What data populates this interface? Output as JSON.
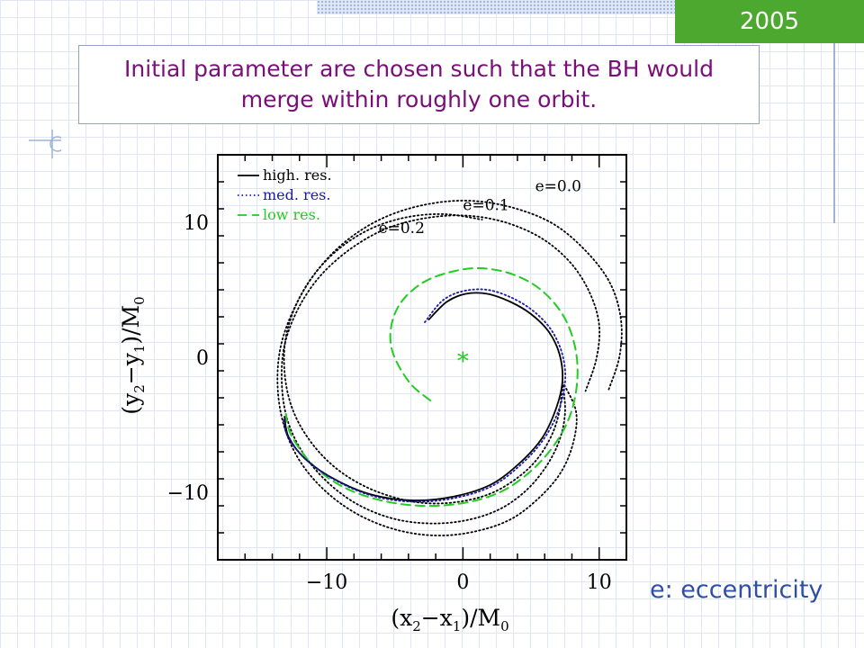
{
  "slide": {
    "year": "2005",
    "title": "Initial parameter are chosen such that the BH would merge within roughly one orbit.",
    "caption": "e: eccentricity"
  },
  "colors": {
    "title_text": "#7a0e7a",
    "badge": "#4ca82e",
    "caption": "#2e4fa8",
    "high_res": "#000000",
    "med_res": "#1a1aa8",
    "low_res": "#22cc22"
  },
  "chart_data": {
    "type": "line",
    "x_label_main": "(x",
    "x_label_sub1": "2",
    "x_label_mid": "−x",
    "x_label_sub2": "1",
    "x_label_end": ")/M",
    "x_label_sub3": "0",
    "y_label_main": "(y",
    "y_label_sub1": "2",
    "y_label_mid": "−y",
    "y_label_sub2": "1",
    "y_label_end": ")/M",
    "y_label_sub3": "0",
    "xlim": [
      -18,
      12
    ],
    "ylim": [
      -15,
      15
    ],
    "x_ticks": [
      -10,
      0,
      10
    ],
    "x_tick_labels": [
      "−10",
      "0",
      "10"
    ],
    "y_ticks": [
      -10,
      0,
      10
    ],
    "y_tick_labels": [
      "−10",
      "0",
      "10"
    ],
    "legend_position": "top-left",
    "legend": [
      {
        "label": "high. res.",
        "style": "solid",
        "color": "#000000"
      },
      {
        "label": "med. res.",
        "style": "dotted",
        "color": "#1a1aa8"
      },
      {
        "label": "low res.",
        "style": "dashed",
        "color": "#22cc22"
      }
    ],
    "annotations": [
      {
        "text": "e=0.0",
        "x": 5.3,
        "y": 12.3
      },
      {
        "text": "e=0.1",
        "x": 0.0,
        "y": 10.9
      },
      {
        "text": "e=0.2",
        "x": -6.2,
        "y": 9.2
      }
    ],
    "center_marker": {
      "symbol": "*",
      "x": 0,
      "y": 0,
      "color": "#22cc22"
    },
    "series": [
      {
        "name": "high. res.",
        "style": "solid",
        "color": "#000000",
        "points": [
          [
            -2.5,
            2.8
          ],
          [
            -1.2,
            4.1
          ],
          [
            0.2,
            4.7
          ],
          [
            1.8,
            4.7
          ],
          [
            3.5,
            4.1
          ],
          [
            5.0,
            3.2
          ],
          [
            6.3,
            1.9
          ],
          [
            7.1,
            0.2
          ],
          [
            7.3,
            -1.8
          ],
          [
            6.8,
            -3.9
          ],
          [
            5.8,
            -6.0
          ],
          [
            4.2,
            -7.8
          ],
          [
            2.1,
            -9.4
          ],
          [
            -0.6,
            -10.3
          ],
          [
            -3.6,
            -10.6
          ],
          [
            -6.6,
            -10.2
          ],
          [
            -9.3,
            -9.1
          ],
          [
            -11.5,
            -7.6
          ],
          [
            -12.8,
            -5.9
          ],
          [
            -13.1,
            -4.4
          ]
        ]
      },
      {
        "name": "med. res.",
        "style": "dotted",
        "color": "#1a1aa8",
        "points": [
          [
            -2.8,
            2.6
          ],
          [
            -1.5,
            4.2
          ],
          [
            0.0,
            4.9
          ],
          [
            1.8,
            5.0
          ],
          [
            3.6,
            4.4
          ],
          [
            5.2,
            3.4
          ],
          [
            6.5,
            2.0
          ],
          [
            7.3,
            0.2
          ],
          [
            7.5,
            -1.8
          ],
          [
            7.0,
            -4.0
          ],
          [
            5.9,
            -6.1
          ],
          [
            4.3,
            -7.9
          ],
          [
            2.2,
            -9.5
          ],
          [
            -0.5,
            -10.4
          ],
          [
            -3.5,
            -10.7
          ],
          [
            -6.5,
            -10.3
          ],
          [
            -9.2,
            -9.2
          ],
          [
            -11.4,
            -7.7
          ],
          [
            -12.8,
            -6.0
          ],
          [
            -13.2,
            -4.5
          ]
        ]
      },
      {
        "name": "low res.",
        "style": "dashed",
        "color": "#22cc22",
        "points": [
          [
            -2.4,
            -3.2
          ],
          [
            -3.9,
            -1.9
          ],
          [
            -5.1,
            0.2
          ],
          [
            -5.3,
            2.1
          ],
          [
            -4.6,
            4.0
          ],
          [
            -3.0,
            5.5
          ],
          [
            -1.0,
            6.3
          ],
          [
            1.2,
            6.6
          ],
          [
            3.5,
            6.2
          ],
          [
            5.6,
            5.1
          ],
          [
            7.3,
            3.2
          ],
          [
            8.2,
            0.9
          ],
          [
            8.4,
            -1.6
          ],
          [
            7.9,
            -4.2
          ],
          [
            6.7,
            -6.5
          ],
          [
            4.9,
            -8.5
          ],
          [
            2.7,
            -10.0
          ],
          [
            0.0,
            -10.8
          ],
          [
            -3.0,
            -11.0
          ],
          [
            -6.0,
            -10.6
          ],
          [
            -8.8,
            -9.6
          ],
          [
            -11.0,
            -8.0
          ],
          [
            -12.6,
            -5.8
          ],
          [
            -13.0,
            -4.2
          ]
        ]
      },
      {
        "name": "e=0.0",
        "style": "dotted",
        "color": "#000000",
        "points": [
          [
            7.3,
            -1.8
          ],
          [
            8.3,
            -4.0
          ],
          [
            8.1,
            -6.3
          ],
          [
            7.2,
            -8.5
          ],
          [
            5.6,
            -10.4
          ],
          [
            3.5,
            -12.0
          ],
          [
            0.9,
            -12.9
          ],
          [
            -1.9,
            -13.2
          ],
          [
            -4.8,
            -12.8
          ],
          [
            -7.6,
            -11.7
          ],
          [
            -10.0,
            -10.0
          ],
          [
            -11.9,
            -7.8
          ],
          [
            -13.1,
            -5.2
          ],
          [
            -13.6,
            -2.3
          ],
          [
            -13.4,
            0.7
          ],
          [
            -12.4,
            3.6
          ],
          [
            -10.8,
            6.3
          ],
          [
            -8.6,
            8.6
          ],
          [
            -5.9,
            10.3
          ],
          [
            -2.8,
            11.3
          ],
          [
            0.4,
            11.6
          ],
          [
            3.6,
            11.1
          ],
          [
            6.6,
            9.9
          ],
          [
            9.0,
            7.9
          ],
          [
            10.8,
            5.5
          ],
          [
            11.6,
            2.8
          ],
          [
            11.5,
            0.1
          ],
          [
            10.7,
            -2.4
          ]
        ]
      },
      {
        "name": "e=0.1",
        "style": "dotted",
        "color": "#000000",
        "points": [
          [
            7.3,
            -1.8
          ],
          [
            7.5,
            -4.0
          ],
          [
            7.1,
            -6.1
          ],
          [
            6.1,
            -8.1
          ],
          [
            4.6,
            -9.9
          ],
          [
            2.6,
            -11.3
          ],
          [
            0.1,
            -12.1
          ],
          [
            -2.6,
            -12.3
          ],
          [
            -5.3,
            -11.9
          ],
          [
            -7.9,
            -10.8
          ],
          [
            -10.1,
            -9.1
          ],
          [
            -11.8,
            -7.0
          ],
          [
            -12.9,
            -4.6
          ],
          [
            -13.3,
            -1.9
          ],
          [
            -13.1,
            0.9
          ],
          [
            -12.1,
            3.6
          ],
          [
            -10.5,
            6.0
          ],
          [
            -8.3,
            8.0
          ],
          [
            -5.7,
            9.5
          ],
          [
            -2.8,
            10.3
          ],
          [
            0.2,
            10.5
          ],
          [
            3.1,
            10.0
          ],
          [
            5.8,
            8.8
          ],
          [
            7.9,
            7.0
          ],
          [
            9.3,
            4.8
          ],
          [
            10.0,
            2.4
          ],
          [
            9.8,
            -0.1
          ],
          [
            9.0,
            -2.5
          ]
        ]
      },
      {
        "name": "e=0.2",
        "style": "dotted",
        "color": "#000000",
        "points": [
          [
            7.3,
            -1.8
          ],
          [
            7.1,
            -3.9
          ],
          [
            6.5,
            -5.8
          ],
          [
            5.4,
            -7.6
          ],
          [
            3.9,
            -9.0
          ],
          [
            2.0,
            -10.1
          ],
          [
            -0.3,
            -10.7
          ],
          [
            -2.8,
            -10.8
          ],
          [
            -5.3,
            -10.3
          ],
          [
            -7.7,
            -9.3
          ],
          [
            -9.8,
            -7.8
          ],
          [
            -11.5,
            -5.8
          ],
          [
            -12.6,
            -3.6
          ],
          [
            -13.1,
            -1.1
          ],
          [
            -13.0,
            1.5
          ],
          [
            -12.2,
            4.0
          ],
          [
            -10.8,
            6.3
          ],
          [
            -8.9,
            8.2
          ],
          [
            -6.6,
            9.6
          ],
          [
            -4.0,
            10.4
          ],
          [
            -1.3,
            10.6
          ],
          [
            1.4,
            10.2
          ]
        ]
      }
    ]
  }
}
